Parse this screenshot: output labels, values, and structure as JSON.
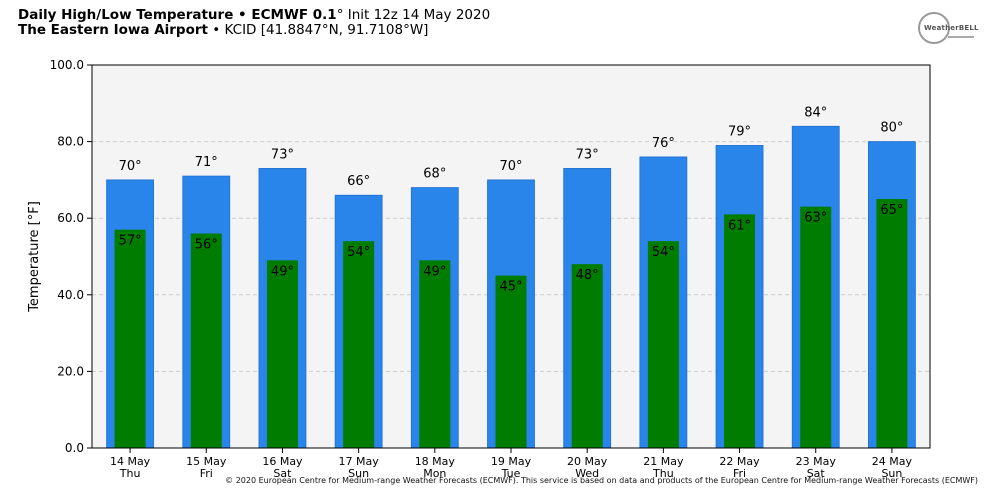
{
  "header": {
    "line1_bold": "Daily High/Low Temperature • ECMWF 0.1",
    "line1_deg": "°",
    "line1_rest": " Init 12z 14 May 2020",
    "line2_bold": "The Eastern Iowa Airport",
    "line2_rest": " • KCID [41.8847°N, 91.7108°W]"
  },
  "logo": {
    "text": "WeatherBELL",
    "icon": "weatherbell-logo-icon"
  },
  "footer": "© 2020 European Centre for Medium-range Weather Forecasts (ECMWF). This service is based on data and products of the European Centre for Medium-range Weather Forecasts (ECMWF)",
  "colors": {
    "high": "#2a85ea",
    "low": "#007c00",
    "plot_bg": "#f4f4f4",
    "grid": "#cccccc"
  },
  "chart_data": {
    "type": "bar",
    "ylabel": "Temperature [°F]",
    "ylim": [
      0,
      100
    ],
    "yticks": [
      "0.0",
      "20.0",
      "40.0",
      "60.0",
      "80.0",
      "100.0"
    ],
    "grid": true,
    "categories": [
      [
        "14 May",
        "Thu"
      ],
      [
        "15 May",
        "Fri"
      ],
      [
        "16 May",
        "Sat"
      ],
      [
        "17 May",
        "Sun"
      ],
      [
        "18 May",
        "Mon"
      ],
      [
        "19 May",
        "Tue"
      ],
      [
        "20 May",
        "Wed"
      ],
      [
        "21 May",
        "Thu"
      ],
      [
        "22 May",
        "Fri"
      ],
      [
        "23 May",
        "Sat"
      ],
      [
        "24 May",
        "Sun"
      ]
    ],
    "series": [
      {
        "key": "high",
        "values": [
          70,
          71,
          73,
          66,
          68,
          70,
          73,
          76,
          79,
          84,
          80
        ],
        "labels": [
          "70°",
          "71°",
          "73°",
          "66°",
          "68°",
          "70°",
          "73°",
          "76°",
          "79°",
          "84°",
          "80°"
        ]
      },
      {
        "key": "low",
        "values": [
          57,
          56,
          49,
          54,
          49,
          45,
          48,
          54,
          61,
          63,
          65
        ],
        "labels": [
          "57°",
          "56°",
          "49°",
          "54°",
          "49°",
          "45°",
          "48°",
          "54°",
          "61°",
          "63°",
          "65°"
        ]
      }
    ]
  }
}
